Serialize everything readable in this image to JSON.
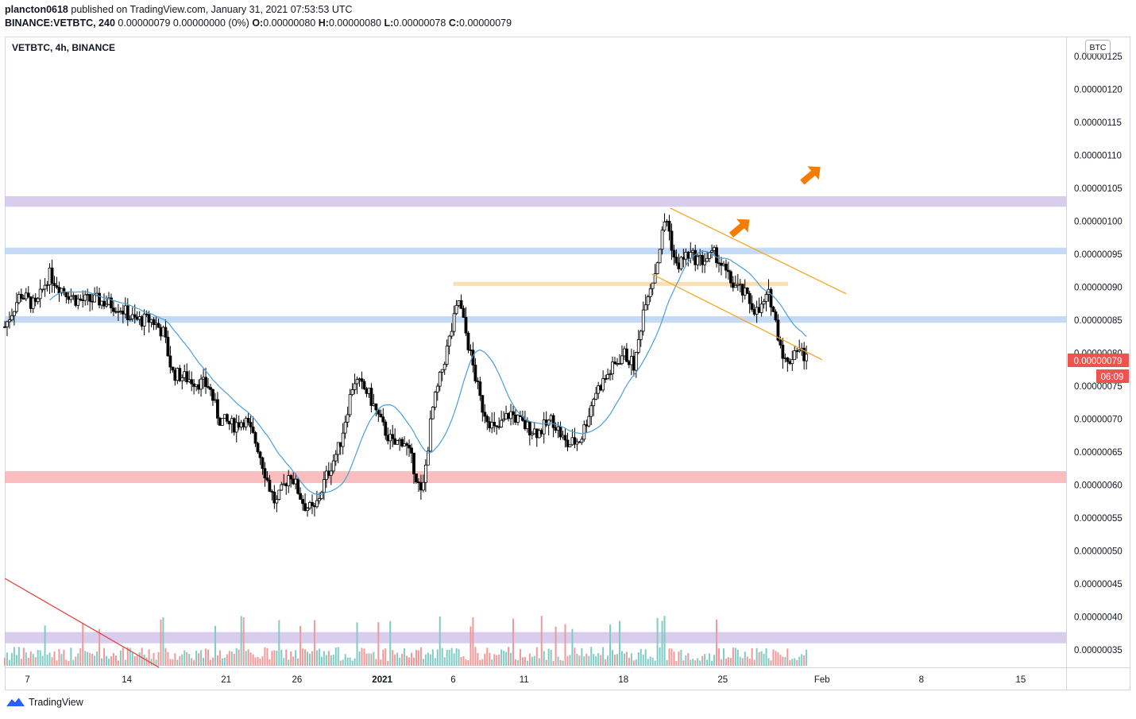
{
  "header": {
    "author": "plancton0618",
    "published_text": "published on TradingView.com, January 31, 2021 07:53:53 UTC",
    "symbol_line_prefix": "BINANCE:VETBTC, 240",
    "change_text": "0.00000079 0.00000000 (0%)",
    "o_label": "O:",
    "o_value": "0.00000080",
    "h_label": "H:",
    "h_value": "0.00000080",
    "l_label": "L:",
    "l_value": "0.00000078",
    "c_label": "C:",
    "c_value": "0.00000079"
  },
  "chart_title": "VETBTC, 4h, BINANCE",
  "currency_badge": "BTC",
  "price_label": {
    "value": "0.00000079",
    "countdown": "06:09",
    "color": "#ef5350"
  },
  "footer": {
    "brand": "TradingView",
    "logo_icon": "tradingview-logo-icon"
  },
  "colors": {
    "up_candle": "#ffffff",
    "down_candle": "#000000",
    "ma_line": "#4a9fd8",
    "vol_up": "#80cbc4",
    "vol_down": "#ef9a9a",
    "zone_purple": "#d1c4e9",
    "zone_blue": "#bbd3f3",
    "zone_red": "#f9b3b3",
    "zone_orange": "#fcd9a4",
    "channel": "#f7a21b",
    "arrow": "#f57c00",
    "trend_red": "#e53935"
  },
  "chart_data": {
    "type": "candlestick",
    "title": "VETBTC, 4h, BINANCE",
    "y_axis": {
      "min": 3.3e-08,
      "max": 1.28e-07,
      "ticks": [
        "0.00000125",
        "0.00000120",
        "0.00000115",
        "0.00000110",
        "0.00000105",
        "0.00000100",
        "0.00000095",
        "0.00000090",
        "0.00000085",
        "0.00000080",
        "0.00000075",
        "0.00000070",
        "0.00000065",
        "0.00000060",
        "0.00000055",
        "0.00000050",
        "0.00000045",
        "0.00000040",
        "0.00000035"
      ],
      "tick_values": [
        125,
        120,
        115,
        110,
        105,
        100,
        95,
        90,
        85,
        80,
        75,
        70,
        65,
        60,
        55,
        50,
        45,
        40,
        35
      ]
    },
    "x_axis": {
      "labels": [
        "7",
        "14",
        "21",
        "26",
        "2021",
        "6",
        "11",
        "18",
        "25",
        "Feb",
        "8",
        "15"
      ],
      "label_days": [
        0,
        7,
        14,
        19,
        25,
        30,
        35,
        42,
        49,
        56,
        63,
        70
      ],
      "range_days": [
        -1.6,
        73.2
      ]
    },
    "close_series": [
      {
        "day": -1.6,
        "price": 84
      },
      {
        "day": -0.5,
        "price": 89
      },
      {
        "day": 0.6,
        "price": 87
      },
      {
        "day": 1.5,
        "price": 92
      },
      {
        "day": 2.3,
        "price": 90
      },
      {
        "day": 3.5,
        "price": 88
      },
      {
        "day": 5.0,
        "price": 88
      },
      {
        "day": 6.5,
        "price": 87
      },
      {
        "day": 7.5,
        "price": 85
      },
      {
        "day": 8.8,
        "price": 85
      },
      {
        "day": 9.6,
        "price": 83
      },
      {
        "day": 10.2,
        "price": 77
      },
      {
        "day": 11.5,
        "price": 76
      },
      {
        "day": 12.8,
        "price": 75
      },
      {
        "day": 13.5,
        "price": 70
      },
      {
        "day": 14.5,
        "price": 69
      },
      {
        "day": 15.3,
        "price": 70
      },
      {
        "day": 16.2,
        "price": 66
      },
      {
        "day": 17.0,
        "price": 60
      },
      {
        "day": 17.5,
        "price": 57
      },
      {
        "day": 18.5,
        "price": 62
      },
      {
        "day": 19.5,
        "price": 57
      },
      {
        "day": 20.2,
        "price": 56
      },
      {
        "day": 21.0,
        "price": 61
      },
      {
        "day": 22.0,
        "price": 66
      },
      {
        "day": 23.0,
        "price": 76
      },
      {
        "day": 24.0,
        "price": 74
      },
      {
        "day": 25.0,
        "price": 69
      },
      {
        "day": 25.8,
        "price": 66
      },
      {
        "day": 26.5,
        "price": 67
      },
      {
        "day": 27.2,
        "price": 63
      },
      {
        "day": 27.8,
        "price": 58
      },
      {
        "day": 28.5,
        "price": 71
      },
      {
        "day": 29.5,
        "price": 80
      },
      {
        "day": 30.4,
        "price": 88
      },
      {
        "day": 31.2,
        "price": 80
      },
      {
        "day": 32.0,
        "price": 72
      },
      {
        "day": 33.0,
        "price": 68
      },
      {
        "day": 34.0,
        "price": 71
      },
      {
        "day": 35.0,
        "price": 69
      },
      {
        "day": 36.0,
        "price": 68
      },
      {
        "day": 37.0,
        "price": 70
      },
      {
        "day": 38.0,
        "price": 66
      },
      {
        "day": 39.0,
        "price": 67
      },
      {
        "day": 40.0,
        "price": 74
      },
      {
        "day": 41.0,
        "price": 77
      },
      {
        "day": 42.0,
        "price": 80
      },
      {
        "day": 42.8,
        "price": 78
      },
      {
        "day": 43.5,
        "price": 88
      },
      {
        "day": 44.2,
        "price": 92
      },
      {
        "day": 45.0,
        "price": 101
      },
      {
        "day": 45.7,
        "price": 93
      },
      {
        "day": 46.5,
        "price": 95
      },
      {
        "day": 47.5,
        "price": 94
      },
      {
        "day": 48.5,
        "price": 95
      },
      {
        "day": 49.5,
        "price": 91
      },
      {
        "day": 50.5,
        "price": 89
      },
      {
        "day": 51.5,
        "price": 86
      },
      {
        "day": 52.3,
        "price": 89
      },
      {
        "day": 53.0,
        "price": 82
      },
      {
        "day": 53.5,
        "price": 78
      },
      {
        "day": 54.2,
        "price": 81
      },
      {
        "day": 55.0,
        "price": 79
      }
    ],
    "zones": [
      {
        "name": "purple-resistance",
        "from": 102.2,
        "to": 103.8,
        "color": "#d1c4e9"
      },
      {
        "name": "blue-resistance-upper",
        "from": 95.0,
        "to": 96.0,
        "color": "#bbd3f3"
      },
      {
        "name": "orange-level",
        "from": 90.2,
        "to": 90.8,
        "color": "#fcd9a4"
      },
      {
        "name": "blue-resistance-lower",
        "from": 84.6,
        "to": 85.6,
        "color": "#bbd3f3"
      },
      {
        "name": "red-support",
        "from": 60.3,
        "to": 62.1,
        "color": "#f9b3b3"
      },
      {
        "name": "purple-volume-zone",
        "from": 36.0,
        "to": 37.7,
        "color": "#d1c4e9"
      }
    ]
  }
}
